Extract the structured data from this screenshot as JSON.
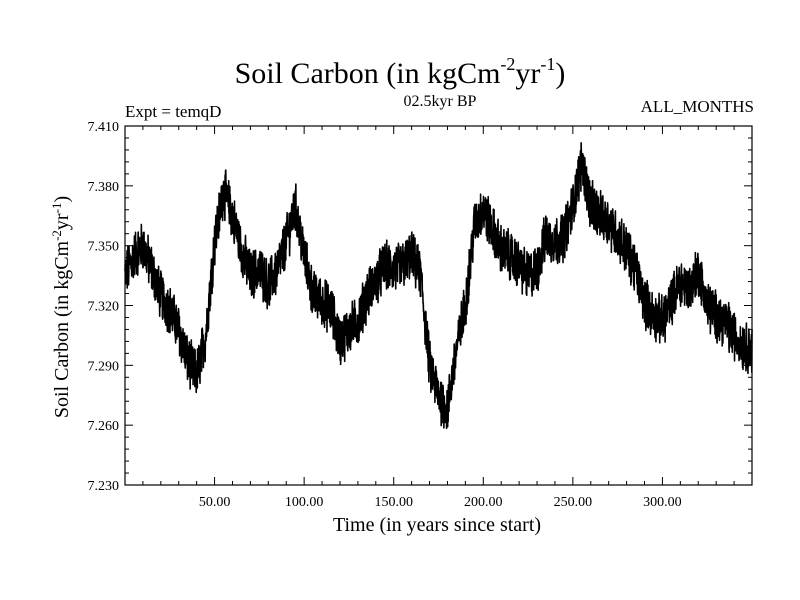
{
  "chart_data": {
    "type": "line",
    "title_main": "Soil Carbon (in kgCm",
    "title_exp1": "-2",
    "title_mid": "yr",
    "title_exp2": "-1",
    "title_end": ")",
    "left_string": "Expt = temqD",
    "center_string": "02.5kyr BP",
    "right_string": "ALL_MONTHS",
    "xlabel": "Time (in years since start)",
    "ylabel_main": "Soil Carbon (in kgCm",
    "ylabel_exp1": "-2",
    "ylabel_mid": "yr",
    "ylabel_exp2": "-1",
    "ylabel_end": ")",
    "xlim": [
      0,
      350
    ],
    "ylim": [
      7.23,
      7.41
    ],
    "x_ticks": [
      50,
      100,
      150,
      200,
      250,
      300
    ],
    "x_tick_labels": [
      "50.00",
      "100.00",
      "150.00",
      "200.00",
      "250.00",
      "300.00"
    ],
    "y_ticks": [
      7.23,
      7.26,
      7.29,
      7.32,
      7.35,
      7.38,
      7.41
    ],
    "y_tick_labels": [
      "7.230",
      "7.260",
      "7.290",
      "7.320",
      "7.350",
      "7.380",
      "7.410"
    ],
    "series": [
      {
        "name": "Soil Carbon",
        "x": [
          0,
          5,
          10,
          15,
          20,
          25,
          30,
          35,
          40,
          45,
          50,
          55,
          60,
          65,
          70,
          75,
          80,
          85,
          90,
          95,
          100,
          105,
          110,
          115,
          120,
          125,
          130,
          135,
          140,
          145,
          150,
          155,
          160,
          165,
          170,
          175,
          180,
          185,
          190,
          195,
          200,
          205,
          210,
          215,
          220,
          225,
          230,
          235,
          240,
          245,
          250,
          255,
          260,
          265,
          270,
          275,
          280,
          285,
          290,
          295,
          300,
          305,
          310,
          315,
          320,
          325,
          330,
          335,
          340,
          345,
          350
        ],
        "y": [
          7.335,
          7.345,
          7.35,
          7.338,
          7.325,
          7.318,
          7.308,
          7.292,
          7.285,
          7.305,
          7.352,
          7.378,
          7.365,
          7.348,
          7.335,
          7.338,
          7.33,
          7.338,
          7.352,
          7.37,
          7.345,
          7.325,
          7.322,
          7.318,
          7.302,
          7.308,
          7.312,
          7.325,
          7.332,
          7.34,
          7.338,
          7.34,
          7.345,
          7.335,
          7.29,
          7.275,
          7.268,
          7.298,
          7.32,
          7.36,
          7.368,
          7.358,
          7.348,
          7.345,
          7.34,
          7.335,
          7.338,
          7.355,
          7.352,
          7.355,
          7.37,
          7.392,
          7.37,
          7.365,
          7.362,
          7.355,
          7.348,
          7.338,
          7.322,
          7.315,
          7.312,
          7.322,
          7.332,
          7.328,
          7.338,
          7.32,
          7.315,
          7.312,
          7.305,
          7.3,
          7.298
        ]
      }
    ]
  }
}
